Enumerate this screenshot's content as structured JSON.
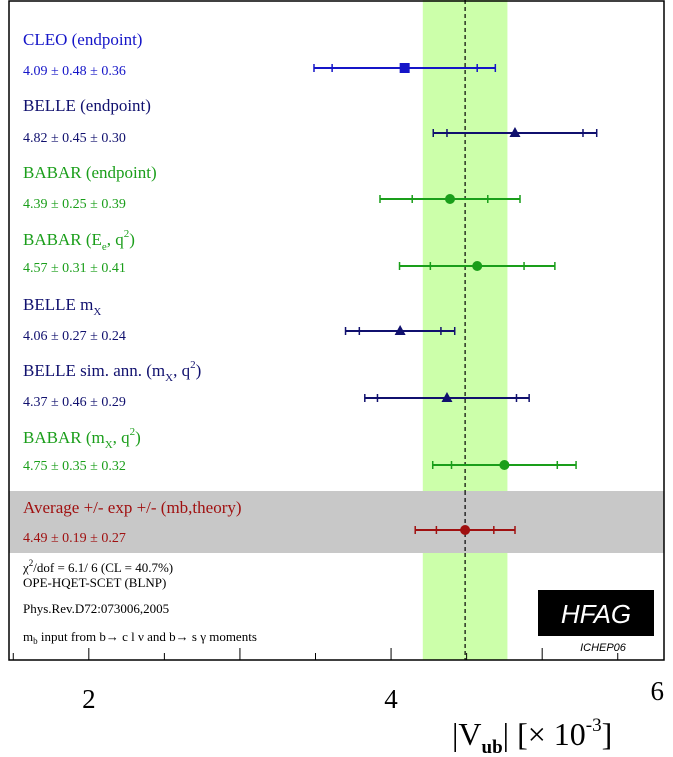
{
  "colors": {
    "cleo": "#1515c8",
    "belle": "#10106e",
    "babar": "#1a9e1a",
    "average": "#a01010",
    "band": "#ccffaa",
    "avg_row_bg": "#c8c8c8",
    "frame": "#000000"
  },
  "chart_data": {
    "type": "forest",
    "x_axis": {
      "range": [
        1.0,
        6.0
      ],
      "ticks": [
        2,
        4,
        6
      ],
      "title_main": "|V",
      "title_sub": "ub",
      "title_rest": "|  [× 10",
      "title_sup": "-3",
      "title_close": "]"
    },
    "band": {
      "center": 4.49,
      "low": 4.21,
      "high": 4.77
    },
    "measurements": [
      {
        "name_parts": [
          {
            "t": "CLEO (endpoint)"
          }
        ],
        "value_text": "4.09 ± 0.48 ± 0.36",
        "value": 4.09,
        "stat": 0.48,
        "syst": 0.36,
        "marker": "square",
        "color_key": "cleo"
      },
      {
        "name_parts": [
          {
            "t": "BELLE (endpoint)"
          }
        ],
        "value_text": "4.82 ± 0.45 ± 0.30",
        "value": 4.82,
        "stat": 0.45,
        "syst": 0.3,
        "marker": "triangle",
        "color_key": "belle"
      },
      {
        "name_parts": [
          {
            "t": "BABAR (endpoint)"
          }
        ],
        "value_text": "4.39 ± 0.25 ± 0.39",
        "value": 4.39,
        "stat": 0.25,
        "syst": 0.39,
        "marker": "circle",
        "color_key": "babar"
      },
      {
        "name_parts": [
          {
            "t": "BABAR (E"
          },
          {
            "t": "e",
            "sub": true
          },
          {
            "t": ", q"
          },
          {
            "t": "2",
            "sup": true
          },
          {
            "t": ")"
          }
        ],
        "value_text": "4.57 ± 0.31 ± 0.41",
        "value": 4.57,
        "stat": 0.31,
        "syst": 0.41,
        "marker": "circle",
        "color_key": "babar"
      },
      {
        "name_parts": [
          {
            "t": "BELLE m"
          },
          {
            "t": "X",
            "sub": true
          }
        ],
        "value_text": "4.06 ± 0.27 ± 0.24",
        "value": 4.06,
        "stat": 0.27,
        "syst": 0.24,
        "marker": "triangle",
        "color_key": "belle"
      },
      {
        "name_parts": [
          {
            "t": "BELLE sim. ann. (m"
          },
          {
            "t": "X",
            "sub": true
          },
          {
            "t": ", q"
          },
          {
            "t": "2",
            "sup": true
          },
          {
            "t": ")"
          }
        ],
        "value_text": "4.37 ± 0.46 ± 0.29",
        "value": 4.37,
        "stat": 0.46,
        "syst": 0.29,
        "marker": "triangle",
        "color_key": "belle"
      },
      {
        "name_parts": [
          {
            "t": "BABAR (m"
          },
          {
            "t": "X",
            "sub": true
          },
          {
            "t": ", q"
          },
          {
            "t": "2",
            "sup": true
          },
          {
            "t": ")"
          }
        ],
        "value_text": "4.75 ± 0.35 ± 0.32",
        "value": 4.75,
        "stat": 0.35,
        "syst": 0.32,
        "marker": "circle",
        "color_key": "babar"
      }
    ],
    "average": {
      "label": "Average +/- exp +/- (mb,theory)",
      "value_text": "4.49 ± 0.19 ± 0.27",
      "value": 4.49,
      "stat": 0.19,
      "syst": 0.27,
      "marker": "circle",
      "color_key": "average"
    },
    "fit_info": {
      "chi2_symbol": "χ",
      "chi2_sup": "2",
      "chi2_rest": "/dof = 6.1/ 6 (CL = 40.7%)",
      "line2": "OPE-HQET-SCET (BLNP)",
      "line3": "Phys.Rev.D72:073006,2005",
      "line4_pre": "m",
      "line4_sub": "b",
      "line4_mid": " input from b",
      "line4_arrow1": "→",
      "line4_mid2": " c l ν and b",
      "line4_arrow2": "→",
      "line4_end": " s γ moments"
    },
    "badge": {
      "title": "HFAG",
      "subtitle": "ICHEP06"
    }
  }
}
